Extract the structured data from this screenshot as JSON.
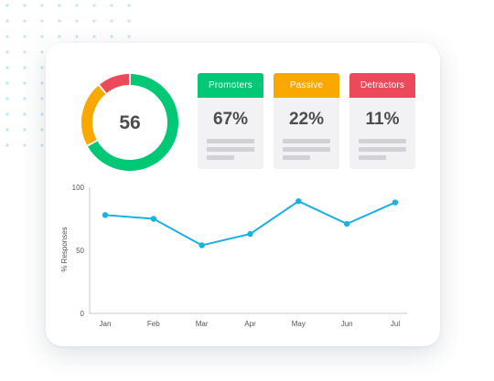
{
  "colors": {
    "promoters": "#00c875",
    "passive": "#f9a800",
    "detractors": "#ec4a5b",
    "line": "#1ab0e3",
    "dots": "#bfe8f6"
  },
  "nps": {
    "score": "56",
    "tiles": [
      {
        "label": "Promoters",
        "value": "67%",
        "color": "#00c875"
      },
      {
        "label": "Passive",
        "value": "22%",
        "color": "#f9a800"
      },
      {
        "label": "Detractors",
        "value": "11%",
        "color": "#ec4a5b"
      }
    ]
  },
  "chart_data": [
    {
      "type": "pie",
      "title": "",
      "center_label": "56",
      "categories": [
        "Promoters",
        "Passive",
        "Detractors"
      ],
      "values": [
        67,
        22,
        11
      ],
      "colors": [
        "#00c875",
        "#f9a800",
        "#ec4a5b"
      ]
    },
    {
      "type": "line",
      "title": "",
      "xlabel": "",
      "ylabel": "% Responses",
      "categories": [
        "Jan",
        "Feb",
        "Mar",
        "Apr",
        "May",
        "Jun",
        "Jul"
      ],
      "series": [
        {
          "values": [
            78,
            75,
            54,
            63,
            89,
            71,
            88
          ]
        }
      ],
      "ylim": [
        0,
        100
      ],
      "yticks": [
        "0",
        "50",
        "100"
      ],
      "grid": false,
      "color": "#1ab0e3"
    }
  ]
}
